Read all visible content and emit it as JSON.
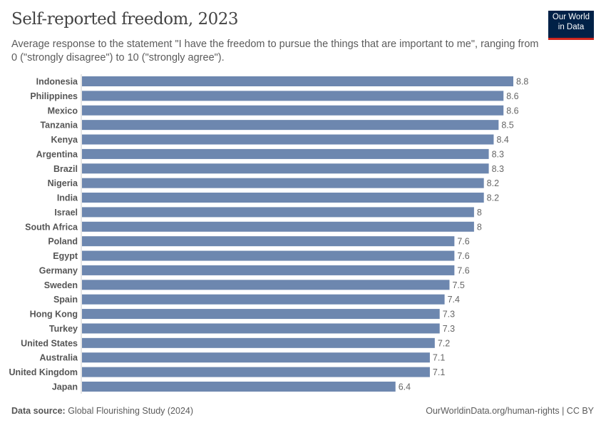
{
  "header": {
    "title": "Self-reported freedom, 2023",
    "subtitle": "Average response to the statement \"I have the freedom to pursue the things that are important to me\", ranging from 0 (\"strongly disagree\") to 10 (\"strongly agree\").",
    "logo": "Our World in Data"
  },
  "footer": {
    "source_label": "Data source:",
    "source": "Global Flourishing Study (2024)",
    "credit": "OurWorldinData.org/human-rights | CC BY"
  },
  "colors": {
    "bar": "#6d87af",
    "brand": "#002147",
    "accent": "#ce261e"
  },
  "chart_data": {
    "type": "bar",
    "orientation": "horizontal",
    "title": "Self-reported freedom, 2023",
    "categories": [
      "Indonesia",
      "Philippines",
      "Mexico",
      "Tanzania",
      "Kenya",
      "Argentina",
      "Brazil",
      "Nigeria",
      "India",
      "Israel",
      "South Africa",
      "Poland",
      "Egypt",
      "Germany",
      "Sweden",
      "Spain",
      "Hong Kong",
      "Turkey",
      "United States",
      "Australia",
      "United Kingdom",
      "Japan"
    ],
    "values": [
      8.8,
      8.6,
      8.6,
      8.5,
      8.4,
      8.3,
      8.3,
      8.2,
      8.2,
      8,
      8,
      7.6,
      7.6,
      7.6,
      7.5,
      7.4,
      7.3,
      7.3,
      7.2,
      7.1,
      7.1,
      6.4
    ],
    "labels": [
      "8.8",
      "8.6",
      "8.6",
      "8.5",
      "8.4",
      "8.3",
      "8.3",
      "8.2",
      "8.2",
      "8",
      "8",
      "7.6",
      "7.6",
      "7.6",
      "7.5",
      "7.4",
      "7.3",
      "7.3",
      "7.2",
      "7.1",
      "7.1",
      "6.4"
    ],
    "xlim": [
      0,
      8.8
    ],
    "grid": false
  }
}
